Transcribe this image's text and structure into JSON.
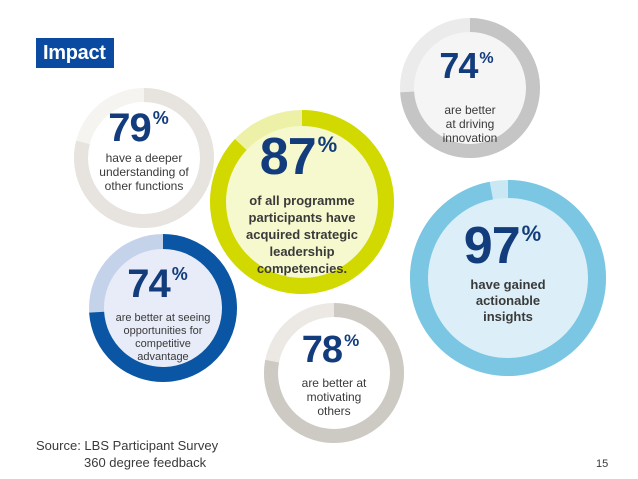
{
  "page": {
    "title": "Impact",
    "source_line1": "Source: LBS Participant Survey",
    "source_line2": "360 degree feedback",
    "page_number": "15"
  },
  "colors": {
    "title_bg": "#0a4aa0",
    "text": "#3a3a3a",
    "big_number": "#123c7c"
  },
  "chart_data": {
    "type": "pie",
    "unit": "%",
    "stats": [
      {
        "value": 74,
        "text": [
          "are better",
          "at driving",
          "innovation"
        ],
        "ring": "#c5c5c5",
        "track": "#ebebeb",
        "fill": "#f5f5f5"
      },
      {
        "value": 79,
        "text": [
          "have a deeper",
          "understanding of",
          "other functions"
        ],
        "ring": "#e7e3de",
        "track": "#f6f4f1",
        "fill": "#ffffff"
      },
      {
        "value": 87,
        "text": [
          "of all programme",
          "participants have",
          "acquired strategic",
          "leadership",
          "competencies."
        ],
        "ring": "#d2d900",
        "track": "#edf1a8",
        "fill": "#f6f8cd"
      },
      {
        "value": 97,
        "text": [
          "have gained",
          "actionable",
          "insights"
        ],
        "ring": "#7ac6e3",
        "track": "#c9e8f4",
        "fill": "#dceff8"
      },
      {
        "value": 74,
        "text": [
          "are better at seeing",
          "opportunities for",
          "competitive",
          "advantage"
        ],
        "ring": "#0b56a4",
        "track": "#c5d3ea",
        "fill": "#e8ecf8"
      },
      {
        "value": 78,
        "text": [
          "are better at",
          "motivating",
          "others"
        ],
        "ring": "#cdc9c3",
        "track": "#ece9e5",
        "fill": "#ffffff"
      }
    ]
  }
}
